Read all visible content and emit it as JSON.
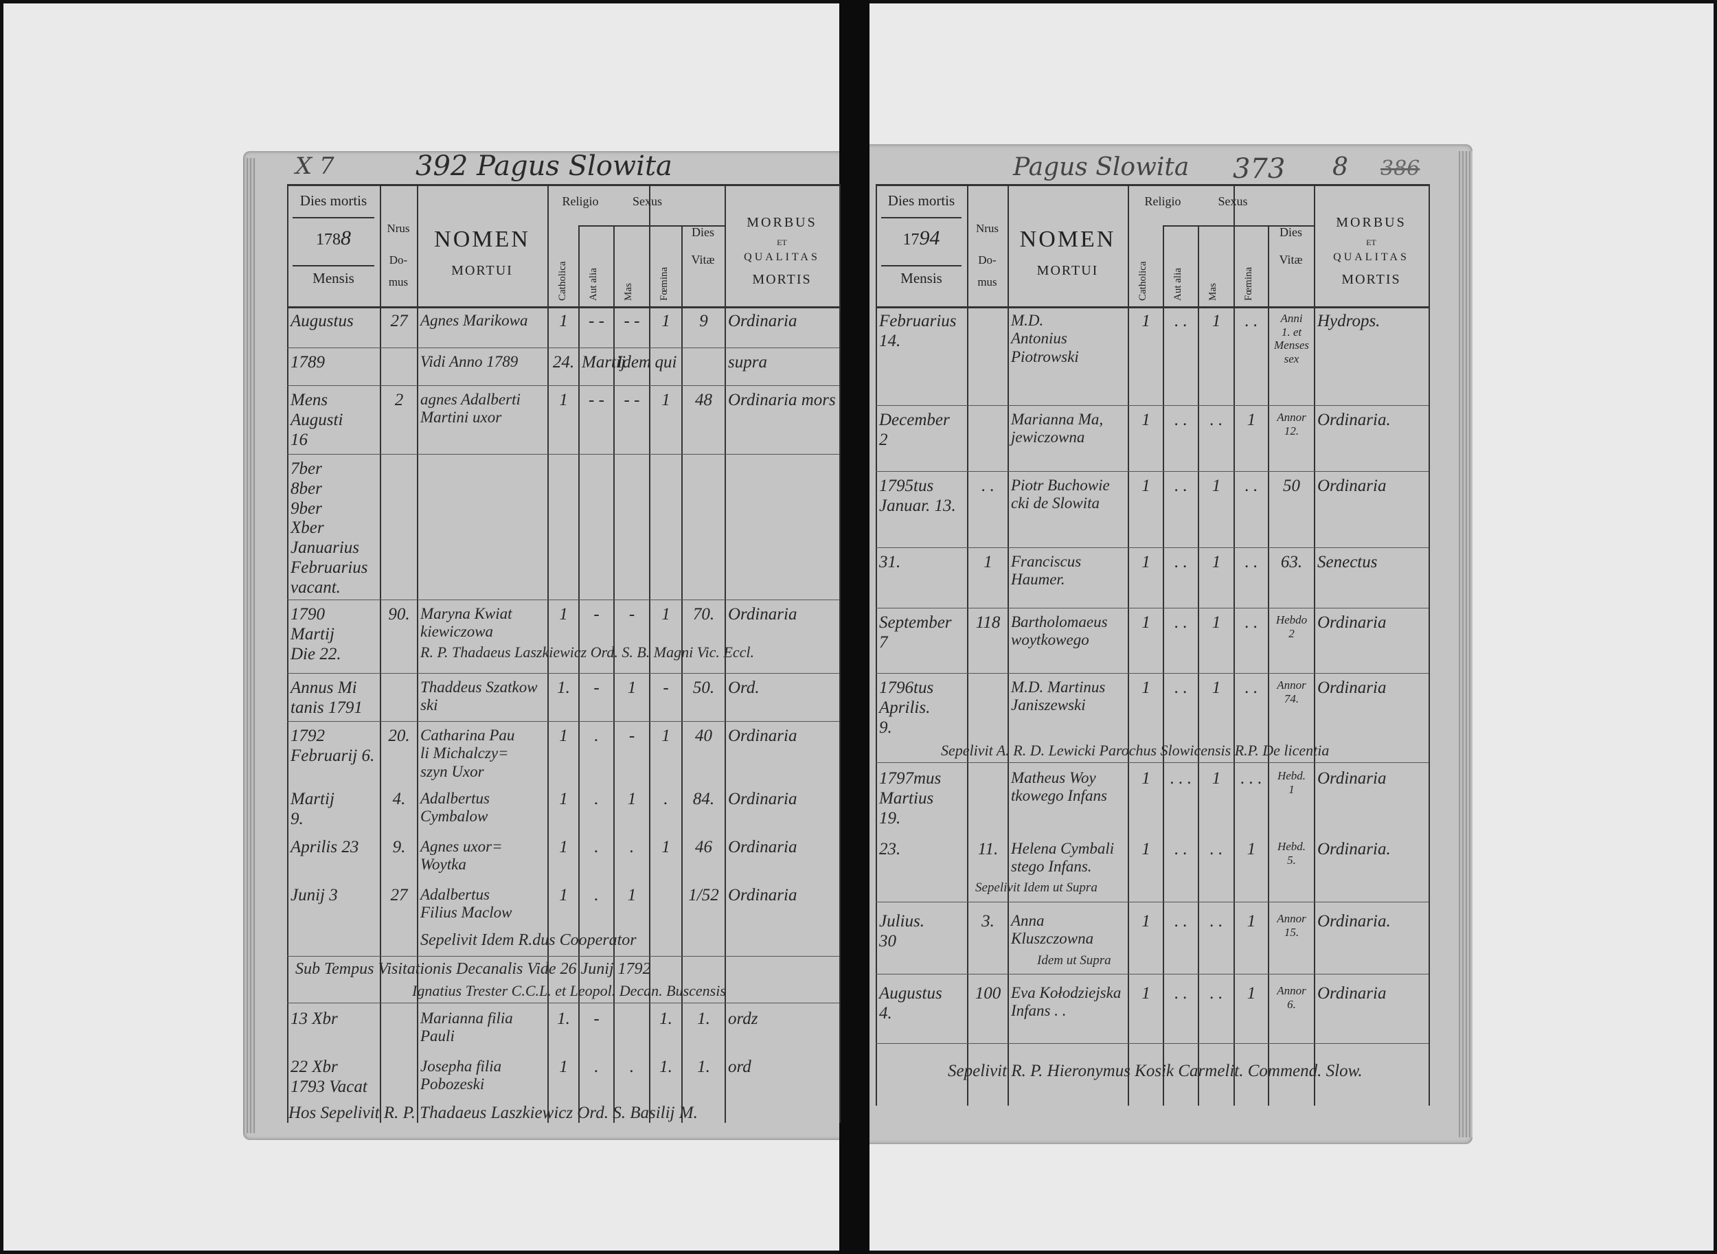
{
  "left_page": {
    "page_heading": "392 Pagus Slowita",
    "corner_mark": "X 7",
    "year_printed": "178",
    "year_written": "8",
    "headers": {
      "dies_mortis": "Dies mortis",
      "mensis": "Mensis",
      "nrus": "Nrus",
      "domus": "Do-\nmus",
      "nomen": "NOMEN",
      "mortui": "MORTUI",
      "religio": "Religio",
      "sexus": "Sexus",
      "catholica": "Catholica",
      "aut_alia": "Aut alia",
      "mas": "Mas",
      "foemina": "Fœmina",
      "dies": "Dies",
      "vitae": "Vitæ",
      "morbus": "MORBUS",
      "et": "ET",
      "qualitas": "QUALITAS",
      "mortis": "MORTIS"
    },
    "rows": [
      {
        "mensis": "Augustus",
        "domus": "27",
        "nomen": "Agnes Marikowa",
        "catholica": "1",
        "alia": "- -",
        "mas": "- -",
        "foemina": "1",
        "vitae": "9",
        "morbus": "Ordinaria"
      },
      {
        "mensis": "1789",
        "domus": "",
        "nomen": "Vidi Anno 1789",
        "catholica": "24.",
        "alia": "Martij",
        "mas": "Idem",
        "foemina": "qui",
        "vitae": "",
        "morbus": "supra"
      },
      {
        "mensis": "Mens Augusti\n16",
        "domus": "2",
        "nomen": "agnes Adalberti\nMartini uxor",
        "catholica": "1",
        "alia": "- -",
        "mas": "- -",
        "foemina": "1",
        "vitae": "48",
        "morbus": "Ordinaria mors"
      },
      {
        "mensis": "7ber\n8ber\n9ber\nXber\nJanuarius\nFebruarius\nvacant.",
        "domus": "",
        "nomen": "",
        "catholica": "",
        "alia": "",
        "mas": "",
        "foemina": "",
        "vitae": "",
        "morbus": ""
      },
      {
        "mensis": "1790\nMartij\nDie 22.",
        "domus": "90.",
        "nomen": "Maryna Kwiat\nkiewiczowa",
        "catholica": "1",
        "alia": "-",
        "mas": "-",
        "foemina": "1",
        "vitae": "70.",
        "morbus": "Ordinaria"
      },
      {
        "mensis": "Annus Mi\ntanis 1791",
        "domus": "",
        "nomen": "Thaddeus Szatkow\nski",
        "catholica": "1.",
        "alia": "-",
        "mas": "1",
        "foemina": "-",
        "vitae": "50.",
        "morbus": "Ord."
      },
      {
        "mensis": "1792\nFebruarij 6.",
        "domus": "20.",
        "nomen": "Catharina Pau\nli Michalczy=\nszyn Uxor",
        "catholica": "1",
        "alia": ".",
        "mas": "-",
        "foemina": "1",
        "vitae": "40",
        "morbus": "Ordinaria"
      },
      {
        "mensis": "Martij\n9.",
        "domus": "4.",
        "nomen": "Adalbertus\nCymbalow",
        "catholica": "1",
        "alia": ".",
        "mas": "1",
        "foemina": ".",
        "vitae": "84.",
        "morbus": "Ordinaria"
      },
      {
        "mensis": "Aprilis 23",
        "domus": "9.",
        "nomen": "Agnes uxor=\nWoytka",
        "catholica": "1",
        "alia": ".",
        "mas": ".",
        "foemina": "1",
        "vitae": "46",
        "morbus": "Ordinaria"
      },
      {
        "mensis": "Junij   3",
        "domus": "27",
        "nomen": "Adalbertus\nFilius Maclow",
        "catholica": "1",
        "alia": ".",
        "mas": "1",
        "foemina": "",
        "vitae": "1/52",
        "morbus": "Ordinaria"
      },
      {
        "mensis": "13 Xbr",
        "domus": "",
        "nomen": "Marianna filia\nPauli",
        "catholica": "1.",
        "alia": "-",
        "mas": "",
        "foemina": "1.",
        "vitae": "1.",
        "morbus": "ordz"
      },
      {
        "mensis": "22 Xbr\n1793 Vacat",
        "domus": "",
        "nomen": "Josepha filia\nPobozeski",
        "catholica": "1",
        "alia": ".",
        "mas": ".",
        "foemina": "1.",
        "vitae": "1.",
        "morbus": "ord"
      }
    ],
    "notes": [
      "R. P. Thadaeus Laszkiewicz Ord. S. B. Magni Vic. Eccl.",
      "Sepelivit Idem R.dus Cooperator",
      "Sub Tempus  Visitationis Decanalis Vide 26 Junij 1792",
      "Ignatius Trester C.C.L. et Leopol. Decan. Buscensis"
    ],
    "footer": "Hos Sepelivit R. P. Thadaeus Laszkiewicz Ord. S. Basilij M."
  },
  "right_page": {
    "page_heading": "Pagus Slowita",
    "page_number": "373",
    "corner_mark": "8",
    "struck_number": "386",
    "year_printed": "17",
    "year_written": "94",
    "headers": {
      "dies_mortis": "Dies mortis",
      "mensis": "Mensis",
      "nrus": "Nrus",
      "domus": "Do-\nmus",
      "nomen": "NOMEN",
      "mortui": "MORTUI",
      "religio": "Religio",
      "sexus": "Sexus",
      "catholica": "Catholica",
      "aut_alia": "Aut alia",
      "mas": "Mas",
      "foemina": "Fœmina",
      "dies": "Dies",
      "vitae": "Vitæ",
      "morbus": "MORBUS",
      "et": "ET",
      "qualitas": "QUALITAS",
      "mortis": "MORTIS"
    },
    "rows": [
      {
        "mensis": "Februarius\n14.",
        "domus": "",
        "nomen": "M.D.\nAntonius\nPiotrowski",
        "catholica": "1",
        "alia": ". .",
        "mas": "1",
        "foemina": ". .",
        "vitae": "Anni\n1. et\nMenses\nsex",
        "morbus": "Hydrops."
      },
      {
        "mensis": "December\n2",
        "domus": "",
        "nomen": "Marianna Ma,\njewiczowna",
        "catholica": "1",
        "alia": ". .",
        "mas": ". .",
        "foemina": "1",
        "vitae": "Annor\n12.",
        "morbus": "Ordinaria."
      },
      {
        "mensis": "1795tus\nJanuar. 13.",
        "domus": ". .",
        "nomen": "Piotr Buchowie\ncki de Slowita",
        "catholica": "1",
        "alia": ". .",
        "mas": "1",
        "foemina": ". .",
        "vitae": "50",
        "morbus": "Ordinaria"
      },
      {
        "mensis": "31.",
        "domus": "1",
        "nomen": "Franciscus\nHaumer.",
        "catholica": "1",
        "alia": ". .",
        "mas": "1",
        "foemina": ". .",
        "vitae": "63.",
        "morbus": "Senectus"
      },
      {
        "mensis": "September\n7",
        "domus": "118",
        "nomen": "Bartholomaeus\nwoytkowego",
        "catholica": "1",
        "alia": ". .",
        "mas": "1",
        "foemina": ". .",
        "vitae": "Hebdo\n2",
        "morbus": "Ordinaria"
      },
      {
        "mensis": "1796tus\nAprilis.\n9.",
        "domus": "",
        "nomen": "M.D. Martinus\nJaniszewski",
        "catholica": "1",
        "alia": ". .",
        "mas": "1",
        "foemina": ". .",
        "vitae": "Annor\n74.",
        "morbus": "Ordinaria"
      },
      {
        "mensis": "1797mus\nMartius\n19.",
        "domus": "",
        "nomen": "Matheus Woy\ntkowego Infans",
        "catholica": "1",
        "alia": ". . .",
        "mas": "1",
        "foemina": ". . .",
        "vitae": "Hebd.\n1",
        "morbus": "Ordinaria"
      },
      {
        "mensis": "23.",
        "domus": "11.",
        "nomen": "Helena Cymbali\nstego Infans.",
        "catholica": "1",
        "alia": ". .",
        "mas": ". .",
        "foemina": "1",
        "vitae": "Hebd.\n5.",
        "morbus": "Ordinaria."
      },
      {
        "mensis": "Julius.\n30",
        "domus": "3.",
        "nomen": "Anna Kluszczowna",
        "catholica": "1",
        "alia": ". .",
        "mas": ". .",
        "foemina": "1",
        "vitae": "Annor\n15.",
        "morbus": "Ordinaria."
      },
      {
        "mensis": "Augustus\n4.",
        "domus": "100",
        "nomen": "Eva Kołodziejska\nInfans . .",
        "catholica": "1",
        "alia": ". .",
        "mas": ". .",
        "foemina": "1",
        "vitae": "Annor\n6.",
        "morbus": "Ordinaria"
      }
    ],
    "notes": [
      "Sepelivit A. R. D. Lewicki Parochus Slowicensis R.P. De licentia",
      "Sepelivit Idem ut Supra",
      "Idem ut Supra"
    ],
    "footer": "Sepelivit R. P. Hieronymus Kosik Carmelit. Commend. Slow."
  }
}
